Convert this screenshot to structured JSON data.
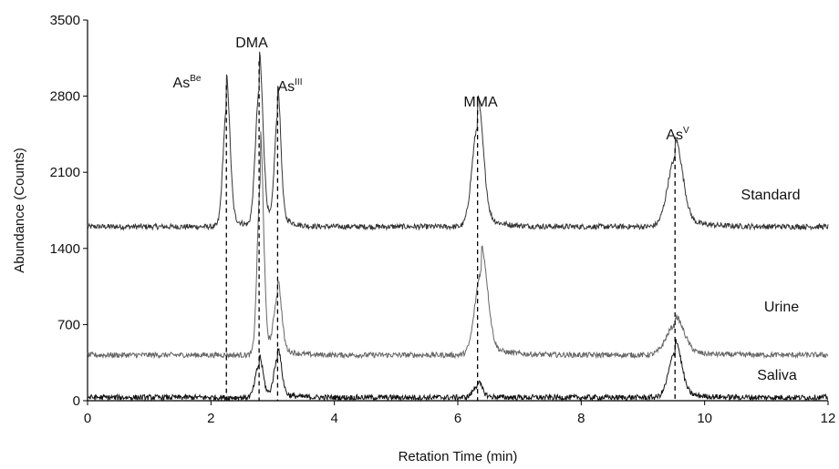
{
  "chart_data": {
    "type": "line",
    "title": "",
    "xlabel": "Retation Time (min)",
    "ylabel": "Abundance (Counts)",
    "xlim": [
      0,
      12
    ],
    "ylim": [
      0,
      3500
    ],
    "x_ticks": [
      "0",
      "2",
      "4",
      "6",
      "8",
      "10",
      "12"
    ],
    "y_ticks": [
      "0",
      "700",
      "1400",
      "2100",
      "2800",
      "3500"
    ],
    "grid": false,
    "peaks": [
      {
        "base": "As",
        "sup": "Be",
        "rt": 2.25
      },
      {
        "base": "DMA",
        "sup": "",
        "rt": 2.78
      },
      {
        "base": "As",
        "sup": "III",
        "rt": 3.08
      },
      {
        "base": "MMA",
        "sup": "",
        "rt": 6.32
      },
      {
        "base": "As",
        "sup": "V",
        "rt": 9.52
      }
    ],
    "series": [
      {
        "name": "Standard",
        "baseline": 1600,
        "color": "#333333",
        "peaks": [
          [
            2.25,
            1250,
            0.055
          ],
          [
            2.78,
            1450,
            0.06
          ],
          [
            3.08,
            1150,
            0.05
          ],
          [
            6.32,
            1070,
            0.09
          ],
          [
            9.52,
            730,
            0.12
          ]
        ]
      },
      {
        "name": "Urine",
        "baseline": 420,
        "color": "#666666",
        "peaks": [
          [
            2.8,
            1850,
            0.05
          ],
          [
            3.08,
            600,
            0.06
          ],
          [
            6.38,
            900,
            0.1
          ],
          [
            9.52,
            320,
            0.14
          ]
        ]
      },
      {
        "name": "Saliva",
        "baseline": 30,
        "color": "#111111",
        "peaks": [
          [
            2.78,
            350,
            0.06
          ],
          [
            3.08,
            410,
            0.06
          ],
          [
            6.32,
            130,
            0.07
          ],
          [
            9.52,
            480,
            0.1
          ]
        ]
      }
    ]
  }
}
